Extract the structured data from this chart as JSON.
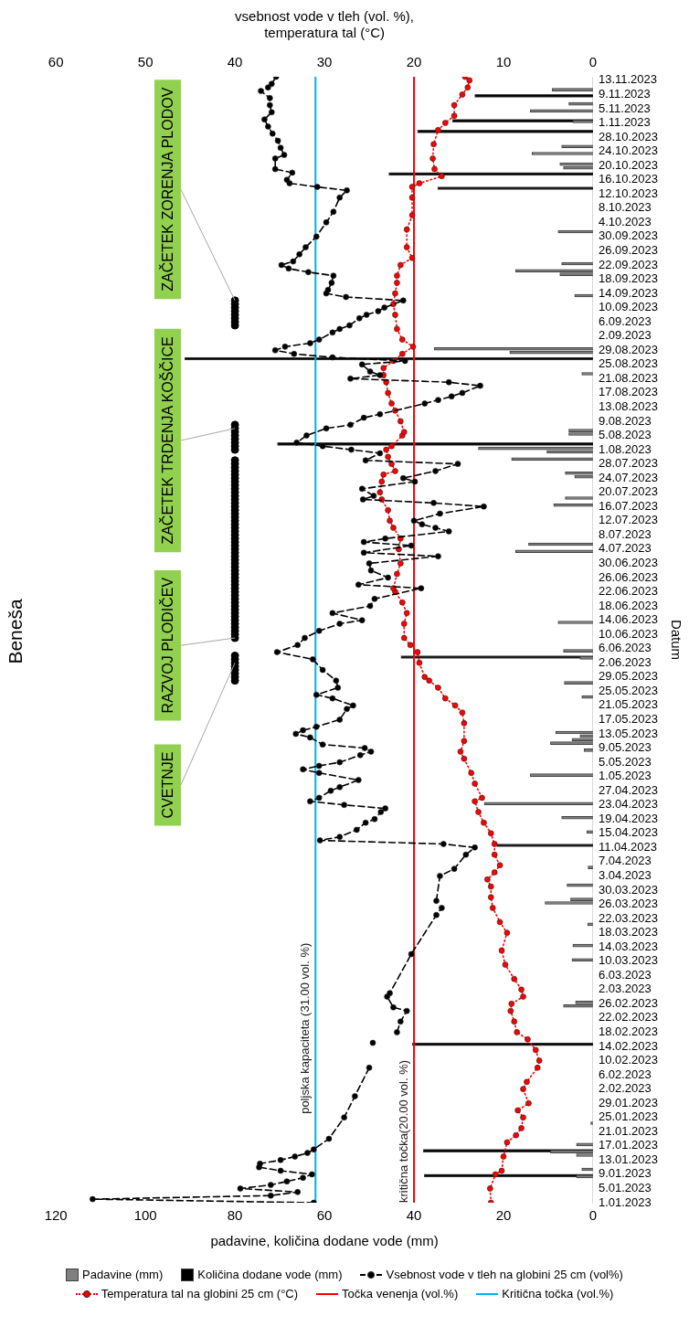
{
  "chart_data": {
    "type": "line",
    "orientation": "horizontal",
    "title": "Beneša",
    "ylabel": "Datum",
    "xlabel": "padavine, količina dodane vode (mm)",
    "x2label": "vsebnost vode v tleh (vol. %),\ntemperatura tal (°C)",
    "ylim": [
      "2023-01-01",
      "2023-11-14"
    ],
    "yticks": [
      {
        "value": "2023-01-01",
        "label": "1.01.2023"
      },
      {
        "value": "2023-01-05",
        "label": "5.01.2023"
      },
      {
        "value": "2023-01-09",
        "label": "9.01.2023"
      },
      {
        "value": "2023-01-13",
        "label": "13.01.2023"
      },
      {
        "value": "2023-01-17",
        "label": "17.01.2023"
      },
      {
        "value": "2023-01-21",
        "label": "21.01.2023"
      },
      {
        "value": "2023-01-25",
        "label": "25.01.2023"
      },
      {
        "value": "2023-01-29",
        "label": "29.01.2023"
      },
      {
        "value": "2023-02-02",
        "label": "2.02.2023"
      },
      {
        "value": "2023-02-06",
        "label": "6.02.2023"
      },
      {
        "value": "2023-02-10",
        "label": "10.02.2023"
      },
      {
        "value": "2023-02-14",
        "label": "14.02.2023"
      },
      {
        "value": "2023-02-18",
        "label": "18.02.2023"
      },
      {
        "value": "2023-02-22",
        "label": "22.02.2023"
      },
      {
        "value": "2023-02-26",
        "label": "26.02.2023"
      },
      {
        "value": "2023-03-02",
        "label": "2.03.2023"
      },
      {
        "value": "2023-03-06",
        "label": "6.03.2023"
      },
      {
        "value": "2023-03-10",
        "label": "10.03.2023"
      },
      {
        "value": "2023-03-14",
        "label": "14.03.2023"
      },
      {
        "value": "2023-03-18",
        "label": "18.03.2023"
      },
      {
        "value": "2023-03-22",
        "label": "22.03.2023"
      },
      {
        "value": "2023-03-26",
        "label": "26.03.2023"
      },
      {
        "value": "2023-03-30",
        "label": "30.03.2023"
      },
      {
        "value": "2023-04-03",
        "label": "3.04.2023"
      },
      {
        "value": "2023-04-07",
        "label": "7.04.2023"
      },
      {
        "value": "2023-04-11",
        "label": "11.04.2023"
      },
      {
        "value": "2023-04-15",
        "label": "15.04.2023"
      },
      {
        "value": "2023-04-19",
        "label": "19.04.2023"
      },
      {
        "value": "2023-04-23",
        "label": "23.04.2023"
      },
      {
        "value": "2023-04-27",
        "label": "27.04.2023"
      },
      {
        "value": "2023-05-01",
        "label": "1.05.2023"
      },
      {
        "value": "2023-05-05",
        "label": "5.05.2023"
      },
      {
        "value": "2023-05-09",
        "label": "9.05.2023"
      },
      {
        "value": "2023-05-13",
        "label": "13.05.2023"
      },
      {
        "value": "2023-05-17",
        "label": "17.05.2023"
      },
      {
        "value": "2023-05-21",
        "label": "21.05.2023"
      },
      {
        "value": "2023-05-25",
        "label": "25.05.2023"
      },
      {
        "value": "2023-05-29",
        "label": "29.05.2023"
      },
      {
        "value": "2023-06-02",
        "label": "2.06.2023"
      },
      {
        "value": "2023-06-06",
        "label": "6.06.2023"
      },
      {
        "value": "2023-06-10",
        "label": "10.06.2023"
      },
      {
        "value": "2023-06-14",
        "label": "14.06.2023"
      },
      {
        "value": "2023-06-18",
        "label": "18.06.2023"
      },
      {
        "value": "2023-06-22",
        "label": "22.06.2023"
      },
      {
        "value": "2023-06-26",
        "label": "26.06.2023"
      },
      {
        "value": "2023-06-30",
        "label": "30.06.2023"
      },
      {
        "value": "2023-07-04",
        "label": "4.07.2023"
      },
      {
        "value": "2023-07-08",
        "label": "8.07.2023"
      },
      {
        "value": "2023-07-12",
        "label": "12.07.2023"
      },
      {
        "value": "2023-07-16",
        "label": "16.07.2023"
      },
      {
        "value": "2023-07-20",
        "label": "20.07.2023"
      },
      {
        "value": "2023-07-24",
        "label": "24.07.2023"
      },
      {
        "value": "2023-07-28",
        "label": "28.07.2023"
      },
      {
        "value": "2023-08-01",
        "label": "1.08.2023"
      },
      {
        "value": "2023-08-05",
        "label": "5.08.2023"
      },
      {
        "value": "2023-08-09",
        "label": "9.08.2023"
      },
      {
        "value": "2023-08-13",
        "label": "13.08.2023"
      },
      {
        "value": "2023-08-17",
        "label": "17.08.2023"
      },
      {
        "value": "2023-08-21",
        "label": "21.08.2023"
      },
      {
        "value": "2023-08-25",
        "label": "25.08.2023"
      },
      {
        "value": "2023-08-29",
        "label": "29.08.2023"
      },
      {
        "value": "2023-09-02",
        "label": "2.09.2023"
      },
      {
        "value": "2023-09-06",
        "label": "6.09.2023"
      },
      {
        "value": "2023-09-10",
        "label": "10.09.2023"
      },
      {
        "value": "2023-09-14",
        "label": "14.09.2023"
      },
      {
        "value": "2023-09-18",
        "label": "18.09.2023"
      },
      {
        "value": "2023-09-22",
        "label": "22.09.2023"
      },
      {
        "value": "2023-09-26",
        "label": "26.09.2023"
      },
      {
        "value": "2023-09-30",
        "label": "30.09.2023"
      },
      {
        "value": "2023-10-04",
        "label": "4.10.2023"
      },
      {
        "value": "2023-10-08",
        "label": "8.10.2023"
      },
      {
        "value": "2023-10-12",
        "label": "12.10.2023"
      },
      {
        "value": "2023-10-16",
        "label": "16.10.2023"
      },
      {
        "value": "2023-10-20",
        "label": "20.10.2023"
      },
      {
        "value": "2023-10-24",
        "label": "24.10.2023"
      },
      {
        "value": "2023-10-28",
        "label": "28.10.2023"
      },
      {
        "value": "2023-11-01",
        "label": "1.11.2023"
      },
      {
        "value": "2023-11-05",
        "label": "5.11.2023"
      },
      {
        "value": "2023-11-09",
        "label": "9.11.2023"
      },
      {
        "value": "2023-11-13",
        "label": "13.11.2023"
      }
    ],
    "xlim": [
      120,
      0
    ],
    "xticks": [
      0,
      20,
      40,
      60,
      80,
      100,
      120
    ],
    "x2lim": [
      60,
      0
    ],
    "x2ticks": [
      0,
      10,
      20,
      30,
      40,
      50,
      60
    ],
    "legend": "bottom",
    "series": [
      {
        "name": "Padavine (mm)",
        "type": "bar",
        "color": "#808080",
        "x": [
          "2023-01-08",
          "2023-01-10",
          "2023-01-14",
          "2023-01-15",
          "2023-01-17",
          "2023-01-23",
          "2023-02-25",
          "2023-02-26",
          "2023-03-10",
          "2023-03-14",
          "2023-03-20",
          "2023-03-26",
          "2023-03-27",
          "2023-03-31",
          "2023-04-05",
          "2023-04-15",
          "2023-04-19",
          "2023-04-23",
          "2023-05-01",
          "2023-05-08",
          "2023-05-10",
          "2023-05-11",
          "2023-05-12",
          "2023-05-13",
          "2023-05-23",
          "2023-05-27",
          "2023-06-03",
          "2023-06-05",
          "2023-06-13",
          "2023-07-03",
          "2023-07-05",
          "2023-07-16",
          "2023-07-18",
          "2023-07-24",
          "2023-07-25",
          "2023-07-29",
          "2023-07-31",
          "2023-08-01",
          "2023-08-05",
          "2023-08-06",
          "2023-08-22",
          "2023-08-28",
          "2023-08-29",
          "2023-09-13",
          "2023-09-19",
          "2023-09-20",
          "2023-09-22",
          "2023-10-01",
          "2023-10-19",
          "2023-10-20",
          "2023-10-23",
          "2023-10-25",
          "2023-11-01",
          "2023-11-04",
          "2023-11-06",
          "2023-11-10"
        ],
        "values": [
          3.7,
          2.5,
          3.7,
          9.5,
          3.7,
          0.5,
          6.6,
          3.9,
          4.7,
          4.5,
          1.2,
          10.7,
          5.0,
          5.8,
          1.1,
          1.4,
          7.0,
          24.3,
          14.0,
          2.0,
          9.5,
          4.7,
          2.9,
          8.3,
          2.5,
          6.4,
          2.9,
          6.6,
          7.8,
          17.3,
          14.4,
          8.8,
          6.2,
          4.1,
          6.2,
          18.2,
          10.3,
          25.6,
          5.4,
          5.4,
          2.5,
          18.6,
          35.5,
          4.1,
          7.4,
          17.3,
          7.0,
          7.8,
          6.6,
          7.4,
          13.6,
          7.0,
          4.5,
          14.0,
          5.4,
          9.1
        ]
      },
      {
        "name": "Količina dodane vode (mm)",
        "type": "bar",
        "color": "#000000",
        "x": [
          "2023-01-09",
          "2023-01-16",
          "2023-02-15",
          "2023-04-12",
          "2023-06-04",
          "2023-08-03",
          "2023-08-27",
          "2023-10-14",
          "2023-10-18",
          "2023-10-30",
          "2023-11-02",
          "2023-11-09"
        ],
        "values": [
          37.7,
          37.9,
          40.4,
          21.5,
          42.9,
          70.5,
          91.2,
          34.7,
          45.6,
          39.2,
          31.4,
          26.4
        ]
      },
      {
        "name": "Vsebnost vode v tleh na globini 25 cm (vol%)",
        "axis": "x2",
        "color": "#000000",
        "line_style": "dashed",
        "marker": "circle",
        "x": [
          "2023-01-01",
          "2023-01-02",
          "2023-01-03",
          "2023-01-04",
          "2023-01-05",
          "2023-01-06",
          "2023-01-07",
          "2023-01-08",
          "2023-01-09",
          "2023-01-10",
          "2023-01-11",
          "2023-01-12",
          "2023-01-13",
          "2023-01-14",
          "2023-01-15",
          "2023-01-16",
          "2023-01-19",
          "2023-01-25",
          "2023-01-31",
          "2023-02-08",
          "2023-02-12",
          "2023-02-15",
          "2023-02-17",
          "2023-02-18",
          "2023-02-21",
          "2023-02-24",
          "2023-02-25",
          "2023-02-28",
          "2023-03-01",
          "2023-03-12",
          "2023-03-23",
          "2023-03-25",
          "2023-03-26",
          "2023-03-27",
          "2023-04-03",
          "2023-04-05",
          "2023-04-09",
          "2023-04-11",
          "2023-04-12",
          "2023-04-13",
          "2023-04-14",
          "2023-04-16",
          "2023-04-18",
          "2023-04-19",
          "2023-04-21",
          "2023-04-22",
          "2023-04-23",
          "2023-04-24",
          "2023-04-25",
          "2023-04-27",
          "2023-04-28",
          "2023-04-30",
          "2023-05-02",
          "2023-05-03",
          "2023-05-04",
          "2023-05-05",
          "2023-05-07",
          "2023-05-08",
          "2023-05-09",
          "2023-05-10",
          "2023-05-12",
          "2023-05-13",
          "2023-05-14",
          "2023-05-15",
          "2023-05-17",
          "2023-05-20",
          "2023-05-21",
          "2023-05-23",
          "2023-05-24",
          "2023-05-26",
          "2023-05-28",
          "2023-05-31",
          "2023-06-03",
          "2023-06-05",
          "2023-06-07",
          "2023-06-09",
          "2023-06-11",
          "2023-06-13",
          "2023-06-14",
          "2023-06-16",
          "2023-06-18",
          "2023-06-20",
          "2023-06-23",
          "2023-06-24",
          "2023-06-26",
          "2023-06-28",
          "2023-06-30",
          "2023-07-02",
          "2023-07-03",
          "2023-07-05",
          "2023-07-06",
          "2023-07-07",
          "2023-07-09",
          "2023-07-10",
          "2023-07-11",
          "2023-07-12",
          "2023-07-14",
          "2023-07-16",
          "2023-07-17",
          "2023-07-18",
          "2023-07-19",
          "2023-07-21",
          "2023-07-23",
          "2023-07-24",
          "2023-07-26",
          "2023-07-28",
          "2023-07-29",
          "2023-07-31",
          "2023-08-01",
          "2023-08-02",
          "2023-08-03",
          "2023-08-05",
          "2023-08-07",
          "2023-08-08",
          "2023-08-10",
          "2023-08-11",
          "2023-08-14",
          "2023-08-15",
          "2023-08-16",
          "2023-08-17",
          "2023-08-19",
          "2023-08-20",
          "2023-08-21",
          "2023-08-22",
          "2023-08-23",
          "2023-08-25",
          "2023-08-26",
          "2023-08-27",
          "2023-08-28",
          "2023-08-29",
          "2023-08-30",
          "2023-08-31",
          "2023-09-01",
          "2023-09-03",
          "2023-09-04",
          "2023-09-05",
          "2023-09-07",
          "2023-09-08",
          "2023-09-09",
          "2023-09-10",
          "2023-09-12",
          "2023-09-13",
          "2023-09-14",
          "2023-09-15",
          "2023-09-17",
          "2023-09-19",
          "2023-09-20",
          "2023-09-21",
          "2023-09-22",
          "2023-09-23",
          "2023-09-25",
          "2023-09-27",
          "2023-09-30",
          "2023-10-04",
          "2023-10-07",
          "2023-10-11",
          "2023-10-13",
          "2023-10-14",
          "2023-10-15",
          "2023-10-16",
          "2023-10-18",
          "2023-10-19",
          "2023-10-22",
          "2023-10-23",
          "2023-10-25",
          "2023-10-27",
          "2023-10-29",
          "2023-10-31",
          "2023-11-02",
          "2023-11-04",
          "2023-11-06",
          "2023-11-08",
          "2023-11-10",
          "2023-11-11",
          "2023-11-12",
          "2023-11-14"
        ],
        "values": [
          31.2,
          55.9,
          36.0,
          33.0,
          39.4,
          36.0,
          34.2,
          32.4,
          31.4,
          34.9,
          37.3,
          37.2,
          34.9,
          33.3,
          31.9,
          31.2,
          29.5,
          27.8,
          26.6,
          25.0,
          null,
          24.6,
          null,
          21.9,
          21.5,
          20.8,
          22.3,
          23.0,
          22.7,
          20.3,
          17.5,
          16.9,
          null,
          17.5,
          17.1,
          15.5,
          14.2,
          13.2,
          16.7,
          30.5,
          28.3,
          26.4,
          25.4,
          24.4,
          23.7,
          23.2,
          27.8,
          31.6,
          30.6,
          29.3,
          28.3,
          26.2,
          30.6,
          32.4,
          30.6,
          28.3,
          26.0,
          24.8,
          25.5,
          30.2,
          31.6,
          33.2,
          32.4,
          30.9,
          28.3,
          27.5,
          26.8,
          29.1,
          30.9,
          28.5,
          28.7,
          30.2,
          31.3,
          35.3,
          33.0,
          32.2,
          30.6,
          28.3,
          25.8,
          29.1,
          24.9,
          24.4,
          19.2,
          26.2,
          22.9,
          24.8,
          25.0,
          17.3,
          25.6,
          20.3,
          25.6,
          23.2,
          16.1,
          17.6,
          19.1,
          20.0,
          17.1,
          12.2,
          17.8,
          25.7,
          24.5,
          25.8,
          19.9,
          21.2,
          17.6,
          15.1,
          25.4,
          23.8,
          27.0,
          30.2,
          33.1,
          32.0,
          29.8,
          27.1,
          25.6,
          23.8,
          18.8,
          17.3,
          15.8,
          14.6,
          12.6,
          16.1,
          27.1,
          23.8,
          24.9,
          25.8,
          21.0,
          29.1,
          33.4,
          35.5,
          34.4,
          31.6,
          30.6,
          29.1,
          28.3,
          27.2,
          26.1,
          25.3,
          24.0,
          23.3,
          21.2,
          27.6,
          29.8,
          29.6,
          29.2,
          29.0,
          31.8,
          34.0,
          34.8,
          33.5,
          32.8,
          32.1,
          30.9,
          29.8,
          29.0,
          28.3,
          27.5,
          30.8,
          33.9,
          34.2,
          33.6,
          35.5,
          35.5,
          34.5,
          34.9,
          35.2,
          35.8,
          36.3,
          36.7,
          35.9,
          36.1,
          36.1,
          37.1,
          36.3,
          35.9,
          35.4
        ]
      },
      {
        "name": "Temperatura tal na globini 25 cm (°C)",
        "axis": "x2",
        "color": "#ff0000",
        "line_style": "dotted",
        "marker": "circle",
        "x": [
          "2023-01-01",
          "2023-01-05",
          "2023-01-09",
          "2023-01-10",
          "2023-01-14",
          "2023-01-18",
          "2023-01-20",
          "2023-01-22",
          "2023-01-25",
          "2023-01-27",
          "2023-01-29",
          "2023-02-02",
          "2023-02-04",
          "2023-02-08",
          "2023-02-10",
          "2023-02-13",
          "2023-02-16",
          "2023-02-18",
          "2023-02-21",
          "2023-02-24",
          "2023-02-26",
          "2023-02-28",
          "2023-03-02",
          "2023-03-05",
          "2023-03-09",
          "2023-03-13",
          "2023-03-18",
          "2023-03-21",
          "2023-03-25",
          "2023-03-28",
          "2023-03-31",
          "2023-04-02",
          "2023-04-04",
          "2023-04-06",
          "2023-04-09",
          "2023-04-12",
          "2023-04-15",
          "2023-04-18",
          "2023-04-21",
          "2023-04-24",
          "2023-04-25",
          "2023-04-29",
          "2023-05-02",
          "2023-05-06",
          "2023-05-08",
          "2023-05-11",
          "2023-05-16",
          "2023-05-19",
          "2023-05-21",
          "2023-05-23",
          "2023-05-26",
          "2023-05-28",
          "2023-05-29",
          "2023-06-02",
          "2023-06-05",
          "2023-06-07",
          "2023-06-09",
          "2023-06-13",
          "2023-06-16",
          "2023-06-19",
          "2023-06-22",
          "2023-06-23",
          "2023-06-27",
          "2023-06-30",
          "2023-07-04",
          "2023-07-07",
          "2023-07-10",
          "2023-07-12",
          "2023-07-15",
          "2023-07-18",
          "2023-07-20",
          "2023-07-23",
          "2023-07-25",
          "2023-07-26",
          "2023-07-28",
          "2023-07-30",
          "2023-08-01",
          "2023-08-02",
          "2023-08-05",
          "2023-08-06",
          "2023-08-09",
          "2023-08-12",
          "2023-08-14",
          "2023-08-17",
          "2023-08-20",
          "2023-08-22",
          "2023-08-24",
          "2023-08-26",
          "2023-08-28",
          "2023-08-30",
          "2023-09-01",
          "2023-09-04",
          "2023-09-08",
          "2023-09-11",
          "2023-09-14",
          "2023-09-17",
          "2023-09-19",
          "2023-09-22",
          "2023-09-24",
          "2023-09-27",
          "2023-10-02",
          "2023-10-06",
          "2023-10-11",
          "2023-10-14",
          "2023-10-15",
          "2023-10-17",
          "2023-10-19",
          "2023-10-22",
          "2023-10-26",
          "2023-10-30",
          "2023-11-01",
          "2023-11-03",
          "2023-11-06",
          "2023-11-09",
          "2023-11-11",
          "2023-11-13",
          "2023-11-14"
        ],
        "values": [
          11.4,
          11.5,
          10.9,
          10.2,
          10.0,
          9.6,
          8.6,
          8.0,
          7.8,
          8.4,
          7.2,
          7.8,
          7.4,
          6.2,
          6.0,
          6.4,
          7.3,
          8.5,
          8.8,
          9.2,
          9.1,
          7.8,
          8.0,
          8.8,
          9.8,
          10.2,
          9.6,
          10.4,
          11.2,
          11.4,
          11.4,
          11.8,
          11.0,
          10.4,
          11.0,
          11.0,
          11.4,
          12.2,
          12.8,
          13.2,
          12.4,
          13.2,
          13.6,
          14.4,
          14.8,
          14.4,
          14.4,
          14.6,
          15.4,
          16.5,
          17.3,
          18.3,
          18.8,
          19.4,
          19.6,
          20.4,
          21.1,
          21.1,
          20.8,
          21.3,
          22.1,
          22.3,
          21.9,
          21.5,
          21.7,
          21.5,
          22.3,
          22.7,
          22.9,
          23.6,
          23.8,
          23.6,
          23.4,
          22.1,
          22.5,
          22.9,
          23.1,
          22.5,
          21.3,
          21.1,
          21.5,
          22.1,
          22.5,
          22.9,
          23.1,
          23.4,
          23.4,
          22.3,
          21.3,
          20.1,
          21.3,
          21.9,
          22.1,
          22.3,
          22.1,
          21.9,
          21.9,
          21.5,
          20.2,
          20.8,
          20.8,
          20.2,
          20.2,
          20.2,
          19.4,
          16.9,
          17.7,
          17.9,
          17.8,
          17.3,
          16.5,
          15.5,
          15.5,
          14.6,
          14.0,
          13.8,
          14.3
        ]
      },
      {
        "name": "Točka venenja (vol.%)",
        "axis": "x2",
        "color": "#ff0000",
        "line_style": "solid",
        "marker": "none",
        "x": [
          "2023-01-01",
          "2023-11-14"
        ],
        "values": [
          20,
          20
        ]
      },
      {
        "name": "Kritična točka (vol.%)",
        "axis": "x2",
        "color": "#00b0f0",
        "line_style": "solid",
        "marker": "none",
        "x": [
          "2023-01-01",
          "2023-11-14"
        ],
        "values": [
          31,
          31
        ]
      },
      {
        "type": "scatter",
        "axis": "x2",
        "color": "#000000",
        "marker": "circle",
        "x": [
          "2023-05-28",
          "2023-05-29",
          "2023-05-30",
          "2023-05-31",
          "2023-06-01",
          "2023-06-02",
          "2023-06-03",
          "2023-06-04",
          "2023-06-09",
          "2023-06-10",
          "2023-06-11",
          "2023-06-12",
          "2023-06-13",
          "2023-06-14",
          "2023-06-15",
          "2023-06-16",
          "2023-06-17",
          "2023-06-18",
          "2023-06-19",
          "2023-06-20",
          "2023-06-21",
          "2023-06-22",
          "2023-06-23",
          "2023-06-24",
          "2023-06-25",
          "2023-06-26",
          "2023-06-27",
          "2023-06-28",
          "2023-06-29",
          "2023-06-30",
          "2023-07-01",
          "2023-07-02",
          "2023-07-03",
          "2023-07-04",
          "2023-07-05",
          "2023-07-06",
          "2023-07-07",
          "2023-07-08",
          "2023-07-09",
          "2023-07-10",
          "2023-07-11",
          "2023-07-12",
          "2023-07-13",
          "2023-07-14",
          "2023-07-15",
          "2023-07-16",
          "2023-07-17",
          "2023-07-18",
          "2023-07-19",
          "2023-07-20",
          "2023-07-21",
          "2023-07-22",
          "2023-07-23",
          "2023-07-24",
          "2023-07-25",
          "2023-07-26",
          "2023-07-27",
          "2023-07-28",
          "2023-07-29",
          "2023-08-01",
          "2023-08-02",
          "2023-08-03",
          "2023-08-04",
          "2023-08-05",
          "2023-08-06",
          "2023-08-07",
          "2023-08-08",
          "2023-09-05",
          "2023-09-06",
          "2023-09-07",
          "2023-09-08",
          "2023-09-09",
          "2023-09-10",
          "2023-09-11",
          "2023-09-12"
        ],
        "values": [
          40,
          40,
          40,
          40,
          40,
          40,
          40,
          40,
          40,
          40,
          40,
          40,
          40,
          40,
          40,
          40,
          40,
          40,
          40,
          40,
          40,
          40,
          40,
          40,
          40,
          40,
          40,
          40,
          40,
          40,
          40,
          40,
          40,
          40,
          40,
          40,
          40,
          40,
          40,
          40,
          40,
          40,
          40,
          40,
          40,
          40,
          40,
          40,
          40,
          40,
          40,
          40,
          40,
          40,
          40,
          40,
          40,
          40,
          40,
          40,
          40,
          40,
          40,
          40,
          40,
          40,
          40,
          40,
          40,
          40,
          40,
          40,
          40,
          40,
          40
        ]
      }
    ],
    "annotations": [
      {
        "text": "CVETNJE",
        "x": 80,
        "y": "2023-06-02"
      },
      {
        "text": "RAZVOJ PLODIČEV",
        "x": 80,
        "y": "2023-06-09"
      },
      {
        "text": "ZAČETEK TRDENJA KOŠČICE",
        "x": 80,
        "y": "2023-08-07"
      },
      {
        "text": "ZAČETEK ZORENJA PLODOV",
        "x": 80,
        "y": "2023-09-12"
      },
      {
        "text": "poljska kapaciteta (31.00 vol. %)",
        "x": 62,
        "y": "2023-01-26"
      },
      {
        "text": "kritična točka(20.00 vol. %)",
        "x": 40,
        "y": "2023-01-01"
      }
    ]
  }
}
